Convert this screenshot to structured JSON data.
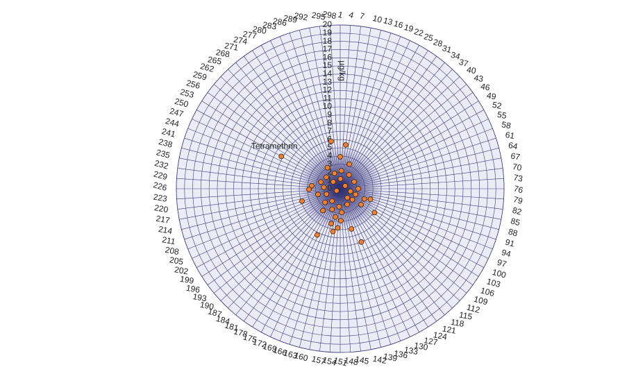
{
  "chart_data": {
    "type": "polar_scatter",
    "raxis_title": "µg/kg",
    "rlim": [
      0,
      20
    ],
    "rticks": [
      0,
      1,
      2,
      3,
      4,
      5,
      6,
      7,
      8,
      9,
      10,
      11,
      12,
      13,
      14,
      15,
      16,
      17,
      18,
      19,
      20
    ],
    "thetalim": [
      1,
      301
    ],
    "thetaticks": [
      1,
      4,
      7,
      10,
      13,
      16,
      19,
      22,
      25,
      28,
      31,
      34,
      37,
      40,
      43,
      46,
      49,
      52,
      55,
      58,
      61,
      64,
      67,
      70,
      73,
      76,
      79,
      82,
      85,
      88,
      91,
      94,
      97,
      100,
      103,
      106,
      109,
      112,
      115,
      118,
      121,
      124,
      127,
      130,
      133,
      136,
      139,
      142,
      145,
      148,
      151,
      154,
      157,
      160,
      163,
      166,
      169,
      172,
      175,
      178,
      181,
      184,
      187,
      190,
      193,
      196,
      199,
      202,
      205,
      208,
      211,
      214,
      217,
      220,
      223,
      226,
      229,
      232,
      235,
      238,
      241,
      244,
      247,
      250,
      253,
      256,
      259,
      262,
      265,
      268,
      271,
      274,
      277,
      280,
      283,
      286,
      289,
      292,
      295,
      298
    ],
    "series": [
      {
        "color": "#f07f2e",
        "theta": [
          292,
          7,
          1,
          18,
          250,
          275,
          231,
          225,
          211,
          92,
          105,
          133,
          138,
          159,
          173,
          150,
          159,
          183,
          169,
          148,
          107,
          76,
          54,
          2,
          259,
          263,
          230,
          208,
          179,
          119,
          88,
          51,
          201,
          4,
          284,
          28,
          93,
          214,
          191,
          131,
          154,
          95,
          163,
          154,
          242,
          111
        ],
        "r": [
          5.9,
          5.4,
          3.9,
          3.2,
          8.2,
          3.0,
          3.5,
          3.8,
          4.9,
          3.9,
          5.1,
          7.0,
          5.1,
          5.3,
          6.3,
          3.9,
          3.5,
          3.4,
          2.7,
          2.9,
          3.2,
          2.2,
          1.9,
          1.2,
          2.2,
          1.2,
          2.0,
          1.8,
          1.8,
          1.4,
          1.3,
          0.7,
          0.5,
          2.2,
          2.0,
          2.0,
          2.0,
          2.8,
          2.5,
          2.1,
          2.2,
          3.2,
          4.4,
          4.8,
          2.5,
          2.0
        ]
      }
    ],
    "annotations": [
      {
        "text": "Tetramethrin",
        "theta": 250,
        "r": 8.2
      }
    ]
  }
}
